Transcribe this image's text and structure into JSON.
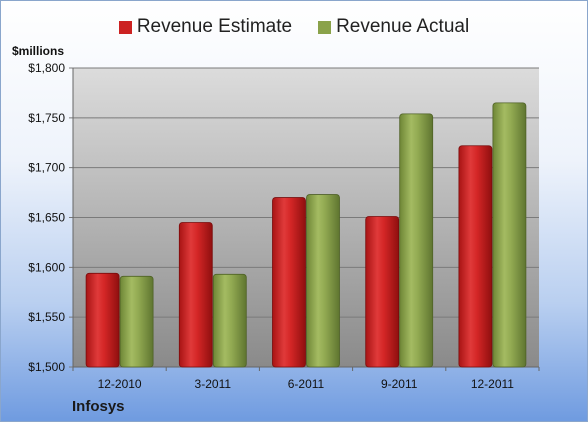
{
  "company": "Infosys",
  "unit_label": "$millions",
  "colors": {
    "estimate": "#cc2222",
    "actual": "#8aa24a"
  },
  "chart_data": {
    "type": "bar",
    "categories": [
      "12-2010",
      "3-2011",
      "6-2011",
      "9-2011",
      "12-2011"
    ],
    "series": [
      {
        "name": "Revenue Estimate",
        "values": [
          1594,
          1645,
          1670,
          1651,
          1722
        ]
      },
      {
        "name": "Revenue Actual",
        "values": [
          1591,
          1593,
          1673,
          1754,
          1765
        ]
      }
    ],
    "ylim": [
      1500,
      1800
    ],
    "yticks": [
      1500,
      1550,
      1600,
      1650,
      1700,
      1750,
      1800
    ],
    "ytick_labels": [
      "$1,500",
      "$1,550",
      "$1,600",
      "$1,650",
      "$1,700",
      "$1,750",
      "$1,800"
    ],
    "ylabel": "$millions",
    "grid": true,
    "legend_position": "top"
  }
}
